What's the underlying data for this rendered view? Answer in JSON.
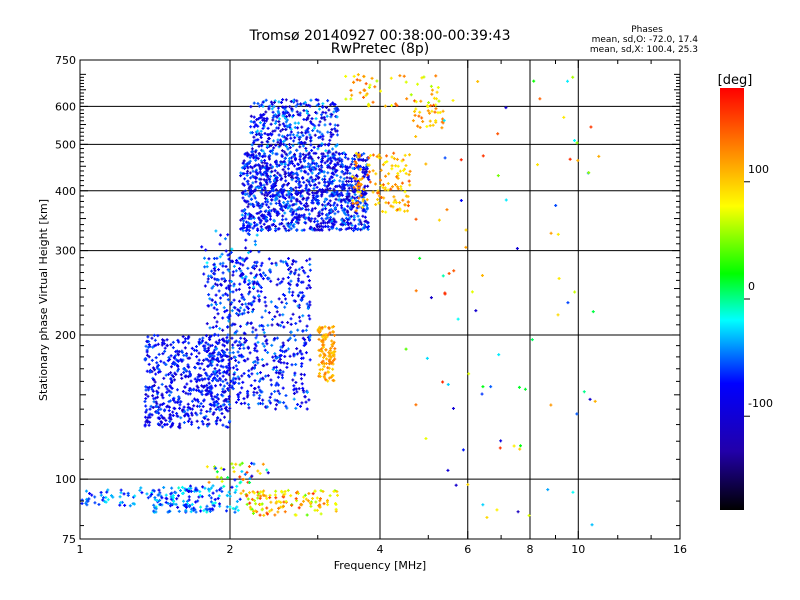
{
  "chart_data": {
    "type": "scatter",
    "title": "Tromsø 20140927 00:38:00-00:39:43",
    "subtitle": "RwPretec (8p)",
    "xlabel": "Frequency [MHz]",
    "ylabel": "Stationary phase Virtual Height [km]",
    "x_scale": "log",
    "y_scale": "log",
    "xlim": [
      1,
      16
    ],
    "ylim": [
      75,
      750
    ],
    "x_ticks": [
      1,
      2,
      4,
      6,
      8,
      10,
      16
    ],
    "x_tick_labels": [
      "1",
      "2",
      "4",
      "6",
      "8",
      "10",
      "16"
    ],
    "x_gridlines": [
      2,
      4,
      6,
      8,
      10
    ],
    "y_ticks": [
      75,
      100,
      200,
      300,
      400,
      500,
      600,
      750
    ],
    "y_tick_labels": [
      "75",
      "100",
      "200",
      "300",
      "400",
      "500",
      "600",
      "750"
    ],
    "y_gridlines": [
      100,
      200,
      300,
      400,
      500,
      600
    ],
    "grid": true,
    "stats": {
      "heading": "Phases",
      "line_o": "mean, sd,O: -72.0, 17.4",
      "line_x": "mean, sd,X: 100.4, 25.3"
    },
    "colorbar": {
      "label": "[deg]",
      "range": [
        -180,
        180
      ],
      "ticks": [
        100,
        0,
        -100
      ],
      "tick_labels": [
        "100",
        "0",
        "-100"
      ],
      "colormap": "rainbow"
    },
    "clusters": [
      {
        "f": [
          1.35,
          2.0
        ],
        "h": [
          128,
          200
        ],
        "phase": [
          -110,
          -50
        ],
        "n": 550
      },
      {
        "f": [
          1.8,
          2.9
        ],
        "h": [
          140,
          290
        ],
        "phase": [
          -110,
          -40
        ],
        "n": 650
      },
      {
        "f": [
          1.75,
          2.3
        ],
        "h": [
          250,
          330
        ],
        "phase": [
          -100,
          -20
        ],
        "n": 60
      },
      {
        "f": [
          2.1,
          3.8
        ],
        "h": [
          330,
          480
        ],
        "phase": [
          -120,
          -40
        ],
        "n": 1200
      },
      {
        "f": [
          2.2,
          3.3
        ],
        "h": [
          480,
          620
        ],
        "phase": [
          -120,
          -30
        ],
        "n": 350
      },
      {
        "f": [
          3.5,
          4.6
        ],
        "h": [
          360,
          480
        ],
        "phase": [
          80,
          150
        ],
        "n": 140
      },
      {
        "f": [
          4.6,
          5.4
        ],
        "h": [
          540,
          610
        ],
        "phase": [
          80,
          140
        ],
        "n": 30
      },
      {
        "f": [
          3.4,
          5.3
        ],
        "h": [
          600,
          700
        ],
        "phase": [
          60,
          150
        ],
        "n": 60
      },
      {
        "f": [
          3.0,
          3.25
        ],
        "h": [
          160,
          210
        ],
        "phase": [
          95,
          135
        ],
        "n": 110
      },
      {
        "f": [
          1.0,
          1.4
        ],
        "h": [
          88,
          96
        ],
        "phase": [
          -80,
          -20
        ],
        "n": 50
      },
      {
        "f": [
          1.4,
          2.1
        ],
        "h": [
          85,
          97
        ],
        "phase": [
          -90,
          -10
        ],
        "n": 160
      },
      {
        "f": [
          2.1,
          3.3
        ],
        "h": [
          84,
          95
        ],
        "phase": [
          40,
          160
        ],
        "n": 130
      },
      {
        "f": [
          1.8,
          2.4
        ],
        "h": [
          98,
          108
        ],
        "phase": [
          -110,
          160
        ],
        "n": 40
      },
      {
        "f": [
          4.5,
          11.0
        ],
        "h": [
          80,
          700
        ],
        "phase": [
          -120,
          170
        ],
        "n": 90
      }
    ]
  }
}
